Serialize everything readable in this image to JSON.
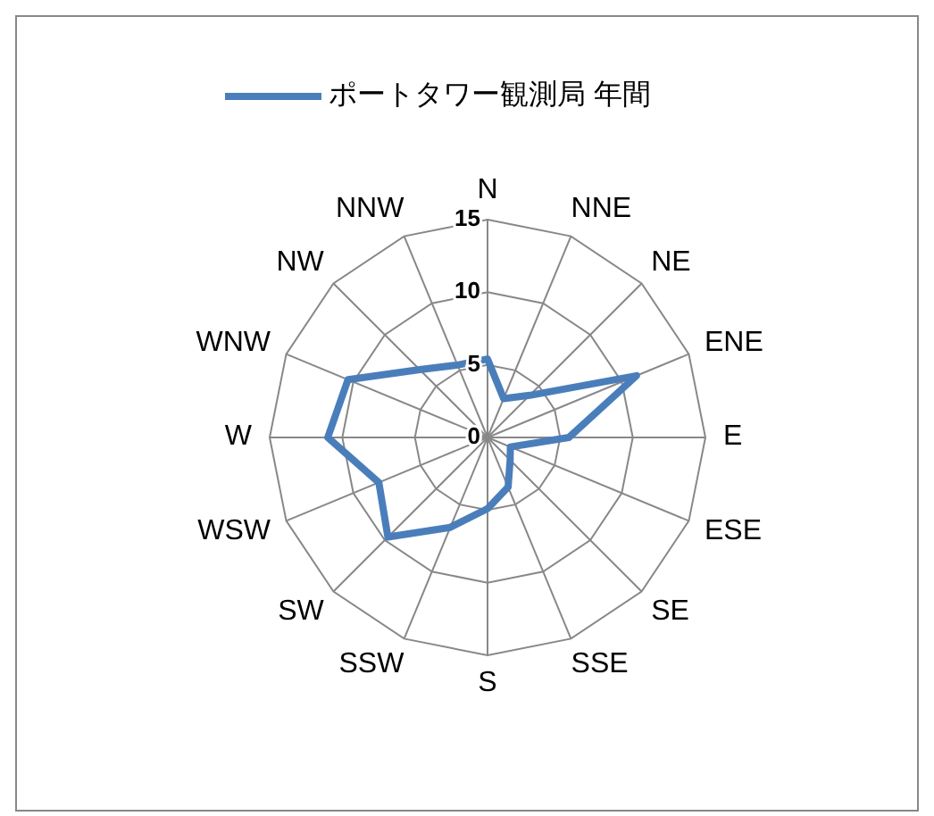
{
  "chart_data": {
    "type": "radar",
    "categories": [
      "N",
      "NNE",
      "NE",
      "ENE",
      "E",
      "ESE",
      "SE",
      "SSE",
      "S",
      "SSW",
      "SW",
      "WSW",
      "W",
      "WNW",
      "NW",
      "NNW"
    ],
    "series": [
      {
        "name": "ポートタワー観測局 年間",
        "color": "#4a7ebb",
        "values": [
          5.4,
          2.9,
          4.1,
          11.1,
          5.6,
          1.7,
          2.2,
          3.7,
          4.9,
          6.7,
          9.7,
          8.1,
          11,
          10.4,
          6.6,
          5.4
        ]
      }
    ],
    "ylim": [
      0,
      15
    ],
    "yticks": [
      0,
      5,
      10,
      15
    ],
    "grid": true,
    "legend": "top"
  }
}
